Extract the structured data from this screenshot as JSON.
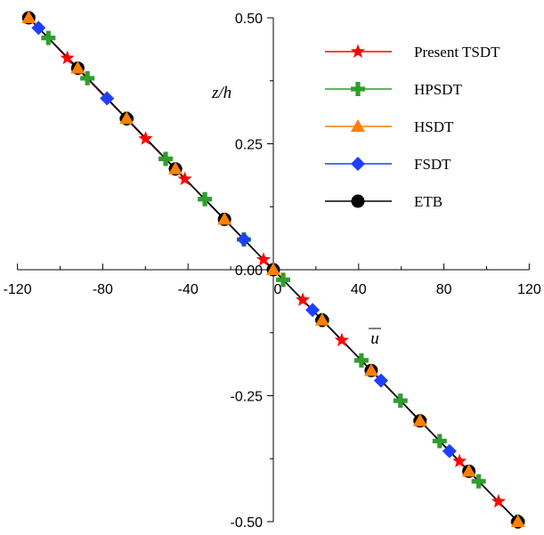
{
  "chart_data": {
    "type": "line",
    "xlabel": "u",
    "ylabel": "z/h",
    "xlim": [
      -120,
      120
    ],
    "ylim": [
      -0.5,
      0.5
    ],
    "x_ticks": [
      "-120",
      "-80",
      "-40",
      "0",
      "40",
      "80",
      "120"
    ],
    "y_ticks": [
      "0.50",
      "0.25",
      "0.00",
      "-0.25",
      "-0.50"
    ],
    "grid": false,
    "legend_position": "top-right",
    "series": [
      {
        "name": "Present TSDT",
        "color": "#ff0000",
        "marker": "star",
        "points": [
          [
            -114.7,
            0.5
          ],
          [
            -96.6,
            0.42
          ],
          [
            -59.9,
            0.26
          ],
          [
            -41.5,
            0.18
          ],
          [
            -4.6,
            0.02
          ],
          [
            13.8,
            -0.06
          ],
          [
            32.1,
            -0.14
          ],
          [
            68.9,
            -0.3
          ],
          [
            87.3,
            -0.38
          ],
          [
            105.6,
            -0.46
          ]
        ]
      },
      {
        "name": "HPSDT",
        "color": "#2e9e2e",
        "marker": "plus",
        "points": [
          [
            -105.5,
            0.46
          ],
          [
            -87.2,
            0.38
          ],
          [
            -68.8,
            0.3
          ],
          [
            -50.5,
            0.22
          ],
          [
            -32.1,
            0.14
          ],
          [
            -13.8,
            0.06
          ],
          [
            4.6,
            -0.02
          ],
          [
            22.9,
            -0.1
          ],
          [
            41.3,
            -0.18
          ],
          [
            59.6,
            -0.26
          ],
          [
            78.0,
            -0.34
          ],
          [
            96.3,
            -0.42
          ],
          [
            114.7,
            -0.5
          ]
        ]
      },
      {
        "name": "HSDT",
        "color": "#ff7f00",
        "marker": "triangle",
        "points": [
          [
            -114.7,
            0.5
          ],
          [
            -91.7,
            0.4
          ],
          [
            -68.8,
            0.3
          ],
          [
            -45.9,
            0.2
          ],
          [
            -22.9,
            0.1
          ],
          [
            0,
            0
          ],
          [
            22.9,
            -0.1
          ],
          [
            45.9,
            -0.2
          ],
          [
            68.8,
            -0.3
          ],
          [
            91.7,
            -0.4
          ],
          [
            114.7,
            -0.5
          ]
        ]
      },
      {
        "name": "FSDT",
        "color": "#1f3fff",
        "marker": "diamond",
        "points": [
          [
            -110.1,
            0.48
          ],
          [
            -78.0,
            0.34
          ],
          [
            -45.9,
            0.2
          ],
          [
            -13.8,
            0.06
          ],
          [
            18.4,
            -0.08
          ],
          [
            50.5,
            -0.22
          ],
          [
            82.6,
            -0.36
          ],
          [
            114.7,
            -0.5
          ]
        ]
      },
      {
        "name": "ETB",
        "color": "#000000",
        "marker": "circle",
        "points": [
          [
            -114.7,
            0.5
          ],
          [
            -91.7,
            0.4
          ],
          [
            -68.8,
            0.3
          ],
          [
            -45.9,
            0.2
          ],
          [
            -22.9,
            0.1
          ],
          [
            0,
            0
          ],
          [
            22.9,
            -0.1
          ],
          [
            45.9,
            -0.2
          ],
          [
            68.8,
            -0.3
          ],
          [
            91.7,
            -0.4
          ],
          [
            114.7,
            -0.5
          ]
        ]
      }
    ]
  }
}
